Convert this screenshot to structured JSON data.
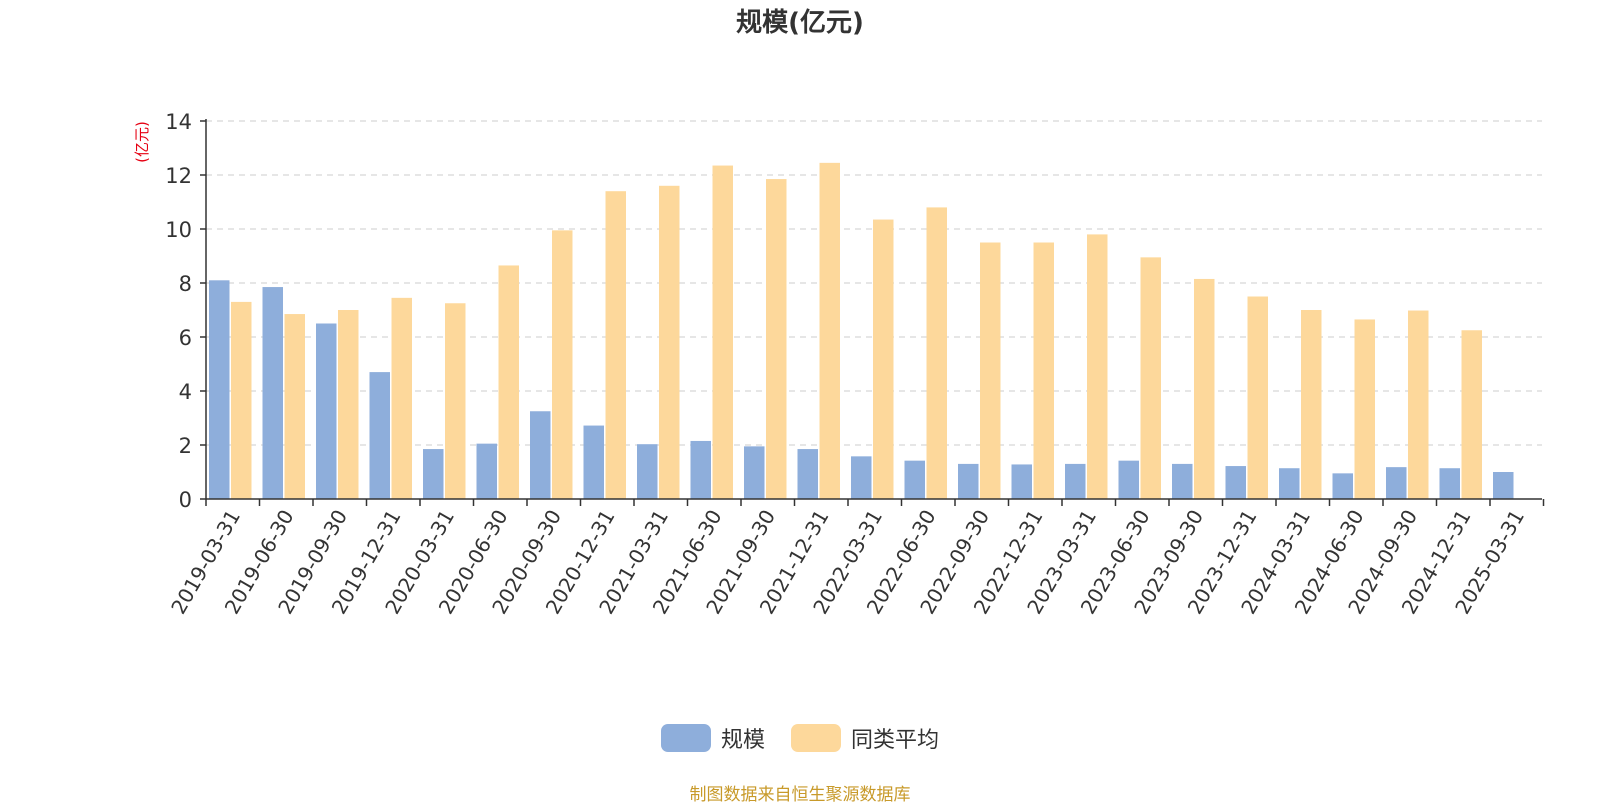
{
  "chart_data": {
    "type": "bar",
    "title": "规模(亿元)",
    "ylabel": "(亿元)",
    "ylim": [
      0,
      14
    ],
    "yticks": [
      0,
      2,
      4,
      6,
      8,
      10,
      12,
      14
    ],
    "grid": true,
    "legend_position": "bottom",
    "categories": [
      "2019-03-31",
      "2019-06-30",
      "2019-09-30",
      "2019-12-31",
      "2020-03-31",
      "2020-06-30",
      "2020-09-30",
      "2020-12-31",
      "2021-03-31",
      "2021-06-30",
      "2021-09-30",
      "2021-12-31",
      "2022-03-31",
      "2022-06-30",
      "2022-09-30",
      "2022-12-31",
      "2023-03-31",
      "2023-06-30",
      "2023-09-30",
      "2023-12-31",
      "2024-03-31",
      "2024-06-30",
      "2024-09-30",
      "2024-12-31",
      "2025-03-31"
    ],
    "series": [
      {
        "name": "规模",
        "color": "#8eaedb",
        "values": [
          8.1,
          7.85,
          6.5,
          4.7,
          1.85,
          2.05,
          3.25,
          2.72,
          2.03,
          2.15,
          1.95,
          1.85,
          1.58,
          1.42,
          1.3,
          1.28,
          1.3,
          1.42,
          1.3,
          1.22,
          1.14,
          0.95,
          1.18,
          1.14,
          1.0
        ]
      },
      {
        "name": "同类平均",
        "color": "#fdd89b",
        "values": [
          7.3,
          6.85,
          7.0,
          7.45,
          7.25,
          8.65,
          9.95,
          11.4,
          11.6,
          12.35,
          11.85,
          12.45,
          10.35,
          10.8,
          9.5,
          9.5,
          9.8,
          8.95,
          8.15,
          7.5,
          7.0,
          6.65,
          6.98,
          6.25,
          null
        ]
      }
    ]
  },
  "source_note": "制图数据来自恒生聚源数据库"
}
